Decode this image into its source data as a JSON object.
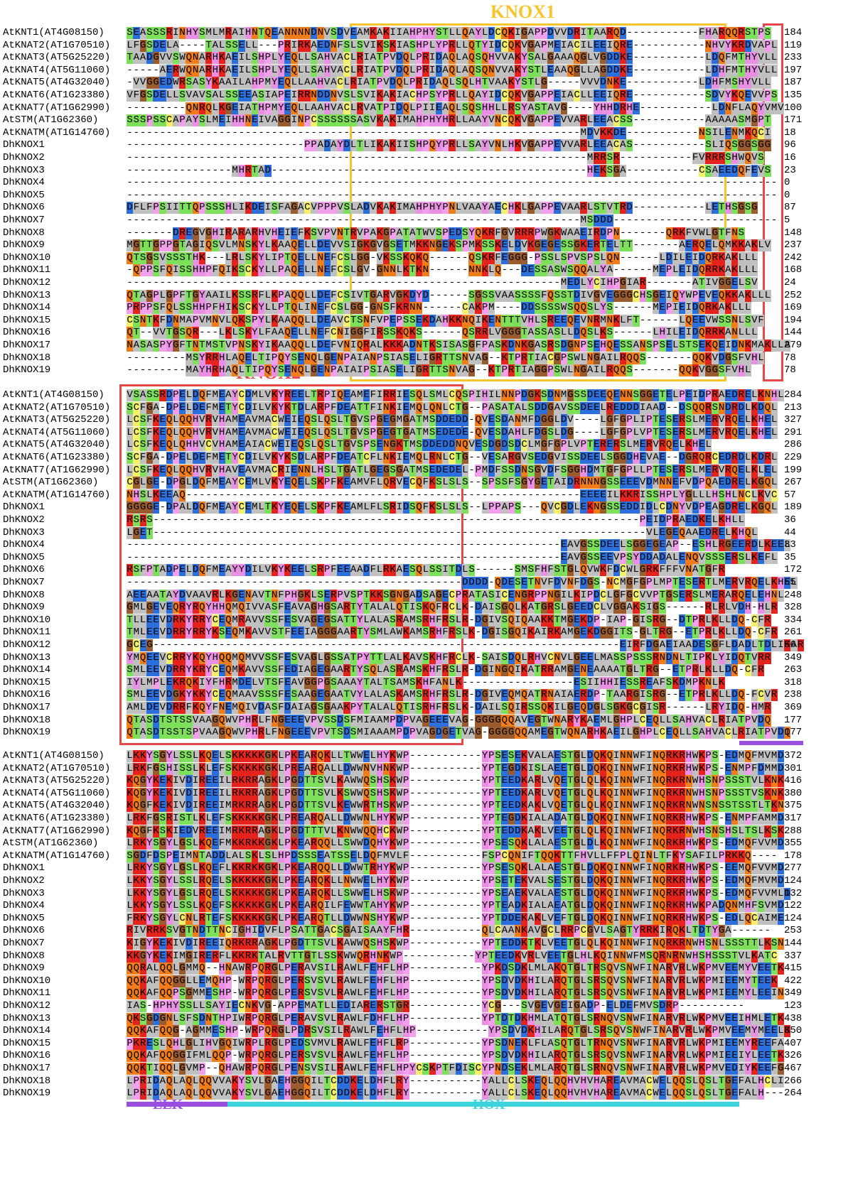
{
  "annotations": {
    "knox1": "KNOX1",
    "knox2": "KNOX2",
    "elk": "ELK",
    "hox": "HOX"
  },
  "blocks": [
    {
      "rows": [
        {
          "name": "AtKNT1(AT4G08150)",
          "sequence": "SEASSSRINHYSMLMRAIHNTQEANNNNDNVSDVEAMKAKIIAHPHYSTLLQAYLDCQKIGAPPDVVDRITAARQD-----------FHARQQRSTPS",
          "end": 184
        },
        {
          "name": "AtKNAT2(AT1G70510)",
          "sequence": "LFGSDELA----TALSSELL---PRIRKAEDNFSLSVIKSKIASHPLYPRLLQTYIDCQKVGAPMEIACILEEIQRE-----------NHVYKRDVAPL",
          "end": 119
        },
        {
          "name": "AtKNAT3(AT5G25220)",
          "sequence": "TAADGVVSWQNARHKAEILSHPLYEQLLSAHVACLRIATPVDQLPRIDAQLAQSQHVVAKYSALGAAAQGLVGDDKE-----------LDQFMTHYVLL",
          "end": 233
        },
        {
          "name": "AtKNAT4(AT5G11060)",
          "sequence": "-----AERWQNARHKAEILSHPLYEQLLSAHVACLRIATPVDQLPRIDAQLAQSQNVVAKYSTLEAAQGLLAGDDKE-----------LDHFMTHYVLL",
          "end": 197
        },
        {
          "name": "AtKNAT5(AT4G32040)",
          "sequence": "-VVGGEDWRSASYKAAILAHPMYEQLLAAHVACLRIATPVDQLPRIDAQLSQLHTVAAKYSTLG-----VVVDNKE-----------LDHFMSHYVLL",
          "end": 187
        },
        {
          "name": "AtKNAT6(AT1G23380)",
          "sequence": "VFGSDELLSVAVSALSSEEASIAPEIRRNDDNVSLSVIKAKIACHPSYPRLLQAYIDCQKVGAPPEIACLLEEIQRE-----------SDVYKQEVVPS",
          "end": 135
        },
        {
          "name": "AtKNAT7(AT1G62990)",
          "sequence": "---------QNRQLKGEIATHPMYEQLLAAHVACLRVATPIDQLPIIEAQLSQSHHLLRSYASTAVG----YHHDRHE-----------LDNFLAQYVMV",
          "end": 100
        },
        {
          "name": "AtSTM(AT1G62360)",
          "sequence": "SSSPSSCAPAYSLMEIHHNEIVAGGINPCSSSSSSASVKAKIMAHPHYHRLLAAYVNCQKVGAPPEVVARLEEACSS-----------AAAAASMGPT",
          "end": 171
        },
        {
          "name": "AtKNATM(AT1G14760)",
          "sequence": "---------------------------------------------------------------------MDVKKDE-----------NSILENMKQCI",
          "end": 18
        },
        {
          "name": "DhKNOX1",
          "sequence": "---------------------------PPADAYDLTLIKAKIISHPQYPRLLSAYVNLHKVGAPPEVVARLEEACAS-----------SLIQSGGSGG",
          "end": 96
        },
        {
          "name": "DhKNOX2",
          "sequence": "----------------------------------------------------------------------MRRSR-----------FVRRRSHWQVS",
          "end": 16
        },
        {
          "name": "DhKNOX3",
          "sequence": "----------------MHRTAD------------------------------------------------HEKSGA-----------CSAEEDQFEVS",
          "end": 23
        },
        {
          "name": "DhKNOX4",
          "sequence": "---------------------------------------------------------------------------------------------------",
          "end": 0
        },
        {
          "name": "DhKNOX5",
          "sequence": "---------------------------------------------------------------------------------------------------",
          "end": 0
        },
        {
          "name": "DhKNOX6",
          "sequence": "DFLFPSIITTQPSSSHLIKDEISFAGACVPPPVSLADVKAKIMAHPHYPNLVAAYAECHKLGAPPEVAARLSTVTRD-----------LETHSGSG",
          "end": 87
        },
        {
          "name": "DhKNOX7",
          "sequence": "---------------------------------------------------------------------MSDDD-------------------------",
          "end": 5
        },
        {
          "name": "DhKNOX8",
          "sequence": "-------DREGVGHIRARARHVHEIEFKSVPVNTRVPAKGPATATWVSPEDSYQKRFGVRRRPWGKWAAEIRDPN-------QRKFVWLGTFNS",
          "end": 148
        },
        {
          "name": "DhKNOX9",
          "sequence": "MGTTGPPGTAGIQSVLMNSKYLKAAQELLDEVVSIGKGVGSETMKKNGEKSPMKSSKELDVKGEGESSGKERTELTT-------AERQELQMKKAKLV",
          "end": 237
        },
        {
          "name": "DhKNOX10",
          "sequence": "QTSGSVSSSTHK---LRLSKYLIPTQELLNEFCSLGG-VKSSKQKQ------QSKRFEGGG-PSSLSPVSPSLQN------LDILEIDQRKAKLLL",
          "end": 242
        },
        {
          "name": "DhKNOX11",
          "sequence": "-QPPSFQISSHHPFQIKSCKYLLPAQELLNEFCSLGV-GNNLKTKN------NNKLQ---DESSASWSQQALYA------MEPLEIDQRRKAKLLL",
          "end": 168
        },
        {
          "name": "DhKNOX12",
          "sequence": "------------------------------------------------------------------MEDLYCIHPGIAR-------ATIVGGELSV",
          "end": 24
        },
        {
          "name": "DhKNOX13",
          "sequence": "QTAGPLGPFTGYAAILKSSRFLKPAQQLLDEFCSIVTGARVGKDYD------SGSSVAASSSSFQSSTDIVGVEGGGCHSGEIQYWPEVEQKKAKLLL",
          "end": 252
        },
        {
          "name": "DhKNOX14",
          "sequence": "PRPPSFQLSSHHPFHIKSCKYLLPTQLINEFCSLGG-GNSFKRNN------CAKPM----DDSSSSWSQQSLYS------MEPIEIDQRKAKLLL",
          "end": 169
        },
        {
          "name": "DhKNOX15",
          "sequence": "CSNTKFDNMAPVMNVLQKSPYLKAAQQLLDEAVCTSNFVPEPSSEKDAHKKNQIKENTTTVHLSREEQEVNRMNKLFT------LQEEVWSSNLSVF",
          "end": 194
        },
        {
          "name": "DhKNOX16",
          "sequence": "QT--VVTGSQR---LKLSKYLFAAQELLNEFCNIGGFIRSSKQKS------QSRRLVGGGTASSASLLDQSLKS------LHILEIDQRRKANLLL",
          "end": 144
        },
        {
          "name": "DhKNOX17",
          "sequence": "NASASPYGFTNTMSTVPNSKYIKAAQQLLDEFVNIQRALKKKADNTKSISASGFPASKDNKGASRSDGNPSEHQESSANSPSELSTSEKQEIDNKMAKLLA",
          "end": 279
        },
        {
          "name": "DhKNOX18",
          "sequence": "---------MSYRRHLAQELTIPQYSENQLGENPAIANPSIASELIGRTTSNVAG--KTPRTIACGPSWLNGAILRQQS-------QQKVDGSFVHL",
          "end": 78
        },
        {
          "name": "DhKNOX19",
          "sequence": "---------MAYHRHAQLTIPQYSENQLGENPAIAIPSIASELIGRTTSNVAG--KTPRTIAGGPSWLNGAILRQQS-------QQKVGGSFVHL",
          "end": 78
        }
      ]
    },
    {
      "rows": [
        {
          "name": "AtKNT1(AT4G08150)",
          "sequence": "VSASSRDPELDQFMEAYCDMLVKYREELTRPIQEAMEFIRRIESQLSMLCQSPIHILNNPDGKSDNMGSSDEEQENNSGGETELPEIDPRAEDRELKNHL",
          "end": 284
        },
        {
          "name": "AtKNAT2(AT1G70510)",
          "sequence": "SCFGA-DPELDEFMETYCDILVKYKTDLARPFDEATTFINKIEMQLQNLCTG--PASATALSDDGAVSSDEELREDDDIAAD--DSQQRSNDRDLKDQL",
          "end": 213
        },
        {
          "name": "AtKNAT3(AT5G25220)",
          "sequence": "LCSFKEQLQQHVRVHAMEAVMACWEIEQSLQSLTGVSPGEGMGATMSDDEDD-QVESDANMFDGGLDV----LGFGPLIPTESERSLMERVRQELKHEL",
          "end": 327
        },
        {
          "name": "AtKNAT4(AT5G11060)",
          "sequence": "LCSFKEQLQQHVRVHAMEAVMACWEIEQSLQSLTGVSPGEGTGATMSEDEDE-QVESDAHLFDGSLDG----LGFGPLVPTESERSLMERVRQELKHEL",
          "end": 291
        },
        {
          "name": "AtKNAT5(AT4G32040)",
          "sequence": "LCSFKEQLQHHVCVHAMEAIACWEIEQSLQSLTGVSPSENGKTMSDDEDDNQVESDGDSDCLMGFGPLVPTERERSLMERVRQELKHEL",
          "end": 286
        },
        {
          "name": "AtKNAT6(AT1G23380)",
          "sequence": "SCFGA-DPELDEFMETYCDILVKYKSDLARPFDEATCFLNKIEMQLRNLCTG--VESARGVSEDGVISSDEELSGGDHEVAE--DGRQRCEDRDLKDRL",
          "end": 229
        },
        {
          "name": "AtKNAT7(AT1G62990)",
          "sequence": "LCSFKEQLQQHVRVHAVEAVMACRIENNLHSLTGATLGEGSGATMSEDEDEL-PMDFSSDNSGVDFSGGHDMTGFGPLLPTESERSLMERVRQELKLEL",
          "end": 199
        },
        {
          "name": "AtSTM(AT1G62360)",
          "sequence": "CGLGE-DPGLDQFMEAYCEMLVKYEQELSKPFKEAMVFLQRVECQFKSLSLS--SPSSFSGYGETAIDRNNNGSSEEEVDMNNEFVDPQAEDRELKGQL",
          "end": 267
        },
        {
          "name": "AtKNATM(AT1G14760)",
          "sequence": "NHSLKEEAQ------------------------------------------------------------EEEEILKKRISSHPLYGLLLHSHLNCLKVC",
          "end": 57
        },
        {
          "name": "DhKNOX1",
          "sequence": "GGGGE-DPALDQFMEAYCEMLTKYEQELSKPFKEAMLFLSRIDSQFKSLSLS--LPPAPS---QVCGDLEKNGSSEDDIDLCDNYVDPEAGDRELKGQL",
          "end": 189
        },
        {
          "name": "DhKNOX2",
          "sequence": "RSRS--------------------------------------------------------------------------PEIDPRAEDKELKHLL",
          "end": 36
        },
        {
          "name": "DhKNOX3",
          "sequence": "LGET---------------------------------------------------------------------------VLEGEQAAEDRELKHQL",
          "end": 44
        },
        {
          "name": "DhKNOX4",
          "sequence": "------------------------------------------------------------------EAVGSSDEELSGGEGEAP--ESHLRGEERDLKEEL",
          "end": 33
        },
        {
          "name": "DhKNOX5",
          "sequence": "------------------------------------------------------------------EAVGSSEEVPSYDDADALENQVSSSERSLKEFL",
          "end": 35
        },
        {
          "name": "DhKNOX6",
          "sequence": "RSFPTADPELDQFMEAYYDILVKYKEELSRPFEEAADFLRKAESQLSSITDLS------SMSFHFSTGLQVWKFDCWLGRKFFFVNATGFR",
          "end": 172
        },
        {
          "name": "DhKNOX7",
          "sequence": "---------------------------------------------------DDDD-QDESETNVFDVNFDGS-NCMGFGPLMPTESERTLMERVRQELKHEL",
          "end": 55
        },
        {
          "name": "DhKNOX8",
          "sequence": "AEEAATAYDVAAVRLKGENAVTNFPHGKLSERPVSPTKKSGNGADSAGECPRATASICENGRPPNGILKIPDCLGFGCVVPTGSERSLMERARQELEHNL",
          "end": 248
        },
        {
          "name": "DhKNOX9",
          "sequence": "GMLGEVEQRYRQYHHQMQIVVASFEAVAGHGSARTYTALALQTISKQFRCLK-DAISGQLKATGRSLGEEDCLVGGAKSIGS------RLRLVDH-HLR",
          "end": 328
        },
        {
          "name": "DhKNOX10",
          "sequence": "TLLEEVDRKYRRYCEQMRAVVSSFESVAGEGSATTYLALASRAMSRHFRSLR-DGIVSQIQAAKKTMGEKDP-IAP-GISRG--DTPRLKLLDQ-CFR",
          "end": 334
        },
        {
          "name": "DhKNOX11",
          "sequence": "TMLEEVDRRYRRYKSEQMKAVVSTFEEIAGGGAARTYSMLAWKAMSRHFRSLK-DGISGQIKAIRKAMGEKDGGITS-GLTRG--ETPRLKLLDQ-CFR",
          "end": 261
        },
        {
          "name": "DhKNOX12",
          "sequence": "GCEG-----------------------------------------------------------------------EIRFDGAEIAADESGFLDADLTDLIKAR",
          "end": 56
        },
        {
          "name": "DhKNOX13",
          "sequence": "YMQEEVCRRYKQYHQQMQMVVSSFESVAGLGSSATPYTTLALKAVSKHFRCLK-SAISDQLRHVCNVLGEELMASSPSSSRNDNLTIPKLYIDQTVRR",
          "end": 349
        },
        {
          "name": "DhKNOX14",
          "sequence": "SMLEEVDRRYKRYCEQMKAVVSSFEDIAGEGAARTYSQLASRAMSKHFRSLR-DGINGQIKATRRAMGENEAAAATGLTRG--ETPRLKLLDQ-CFR",
          "end": 263
        },
        {
          "name": "DhKNOX15",
          "sequence": "IYLMPLEKRQKIYFHRMDELVTSFEAVGGPGSAAAYTALTSAMSKHFANLK-----------------ESIIHHIESSREAFSKDMPKNLK",
          "end": 318
        },
        {
          "name": "DhKNOX16",
          "sequence": "SMLEEVDGKYKKYCEQMAAVSSSFESAAGEGAATVYLALASKAMSRHFRSLR-DGIVEQMQATRNAIAERDP-TAARGISRG--ETPRLKLLDQ-FCVR",
          "end": 238
        },
        {
          "name": "DhKNOX17",
          "sequence": "AMLDEVDRRFKQYFNEMQIVDASFDAIAGSGAAKPYTALALQTISRHFRSLK-DAILSQIRSSQKILGEQDGLSGKGCGISR------LRYIDQ-HMR",
          "end": 369
        },
        {
          "name": "DhKNOX18",
          "sequence": "QTASDTSTSSVAAGQWVPHRLFNGEEEVPVSSDSFMIAAMPDPVAGEEEVAG-GGGGQQAVEGTWNARYKAEMLGHPLCEQLLSAHVACLRIATPVDQ",
          "end": 177
        },
        {
          "name": "DhKNOX19",
          "sequence": "QTASDTSSTSPVAAGQWVPHRLFNGEEEVPVTSDSMIAAAMPDPVAGDGETVAG-GGGGQQAMEGTWQNARHKAEILGHPLCEQLLSAHVACLRIATPVDQ",
          "end": 177
        }
      ]
    },
    {
      "rows": [
        {
          "name": "AtKNT1(AT4G08150)",
          "sequence": "LKKYSGYLSSLKQELSKKKKKGKLPKEARQKLLTWWELHYKWP-----------YPSESEKVALAESTGLDQKQINNWFINQRKRHWKPS-EDMQFMVMD",
          "end": 372
        },
        {
          "name": "AtKNAT2(AT1G70510)",
          "sequence": "LRKFGSHISSLKLEFSKKKKKGKLPREARQALLDWWNVHNKWP-----------YPTEGDKISLAEETGLDQKQINNWFINQRKRHWKPS-ENMPFDMMD",
          "end": 301
        },
        {
          "name": "AtKNAT3(AT5G25220)",
          "sequence": "KQGYKEKIVDIREEILRKRRAGKLPGDTTSVLKAWWQSHSKWP-----------YPTEEDKARLVQETGLQLKQINNWFINQRKRNWHSNPSSSTVLKNK",
          "end": 416
        },
        {
          "name": "AtKNAT4(AT5G11060)",
          "sequence": "KQGYKEKIVDIREEILRKRRAGKLPGDTTSVLKSWWQSHSKWP-----------YPTEEDKARLVQETGLQLKQINNWFINQRKRNWHSNPSSSTVSKNK",
          "end": 380
        },
        {
          "name": "AtKNAT5(AT4G32040)",
          "sequence": "KQGFKEKIVDIREEIMRKRRAGKLPGDTTSVLKEWWRTHSKWP-----------YPTEEDKAKLVQETGLQLKQINNWFINQRKRNWNSNSSTSSTLTKN",
          "end": 375
        },
        {
          "name": "AtKNAT6(AT1G23380)",
          "sequence": "LRKFGSRISTLKLEFSKKKKKGKLPREARQALLDWWNLHYKWP-----------YPTEGDKIALADATGLDQKQINNWFINQRKRHWKPS-ENMPFAMMD",
          "end": 317
        },
        {
          "name": "AtKNAT7(AT1G62990)",
          "sequence": "KQGFKSKIEDVREEIMRKRRAGKLPGDTTTVLKNWWQQHCKWP-----------YPTEDDKAKLVEETGLQLKQINNWFINQRKRNWHSNSHSLTSLKSK",
          "end": 288
        },
        {
          "name": "AtSTM(AT1G62360)",
          "sequence": "LRKYSGYLGSLKQEFMKKRKKGKLPKEARQQLLSWWDQHYKWP-----------YPSESQKLALAESTGLDLKQINNWFINQRKRHWKPS-EDMQFVVMD",
          "end": 355
        },
        {
          "name": "AtKNATM(AT1G14760)",
          "sequence": "SGDFDSPEIMNTADDLALSKLSLHPDSSSEATSSELDQFMVLF-----------FSPCQNIFTQQKTTFHVLLFFPLQINLTFKYSAFILPRKKQ----",
          "end": 178
        },
        {
          "name": "DhKNOX1",
          "sequence": "LRKYSGYLGSLKQEFLKKRKKGKLPKEARQQLLDWWTRHYKWP-----------YPSESQKLALAESTGLDQKQINNWFINQRKRHWKPS-EEMQFVVMD",
          "end": 277
        },
        {
          "name": "DhKNOX2",
          "sequence": "LKKYSGYLSSLRQELSKKKKKGKLPKEARQKLLNWWELHYKWP-----------YPSETEKVALSESTGLDQKQINNWFINQRKRHWKPS-EDMQFMVMD",
          "end": 124
        },
        {
          "name": "DhKNOX3",
          "sequence": "LKKYSGYLGSLRQELSKKKKKGKLPKEARQKLLSWWELHSKWP-----------YPSEAEKVALAESTGLDQKQINNWFINQRKRHWKPS-EDMQFVVMLD",
          "end": 132
        },
        {
          "name": "DhKNOX4",
          "sequence": "LKKYSGYLSSLKQEFSKKKKKGKLPKEARQILFEWWTAHYKWP-----------YPTEADKIALAEATGLDQKQINNWFINQRKRHWKPADQNMHFSVMD",
          "end": 122
        },
        {
          "name": "DhKNOX5",
          "sequence": "FRKYSGYLCNLRTEFSKKKKKGKLPKEARQTLLDWWNSHYKWP-----------YPTDDEKAKLVEFTGLDQKQINNWFINQRKRHWKPS-EDLQCAIME",
          "end": 124
        },
        {
          "name": "DhKNOX6",
          "sequence": "RIVRRKSVGTNDTTNCIGHIDVFLPSATTGACSGAISAAYFHR-----------QLCAANKAVGCLRRPCGVLSAGTYRRKIRQKLTDTYGA------",
          "end": 253
        },
        {
          "name": "DhKNOX7",
          "sequence": "KIGYKEKIVDIREEIQRKRRAGKLPGDTTSVLKAWWQSHSKWP-----------YPTEDDKTKLVEETGLQLKQINNWFINQRKRNWHSNLSSSTTLKSN",
          "end": 144
        },
        {
          "name": "DhKNOX8",
          "sequence": "KKGYKEKIMGIRERFLKKRKTALRVTTGTLSSKWWQRHNKWP-----------YPTEEDKVRLVEETGLHLKQINNWFMSQRNRNWHSHSSSTVLKATC",
          "end": 337
        },
        {
          "name": "DhKNOX9",
          "sequence": "QQRALQQLGMMQ--HNAWRPQRGLPERAVSILRAWLFEHFLHP-----------YPKDSDKLMLAKQTGLTRSQVSNWFINARVRLWKPMVEEMYVEETK",
          "end": 415
        },
        {
          "name": "DhKNOX10",
          "sequence": "QQKAFQQGGLLEMQHP-WRPQRGLPERSVSVLRAWLFEHFLHP-----------YPSDVDKHILARQTGLSRSQVSNWFINARVRLWKPMIEEMYTEEK",
          "end": 422
        },
        {
          "name": "DhKNOX11",
          "sequence": "QQKAFQQPSGMMESHP-WRPQRGLPERSVSVLRAWLFEHFLHP-----------YPSDVDKHILARQTGLSRSQVSNWFINARVRLWKPMIEEMYLEEIN",
          "end": 349
        },
        {
          "name": "DhKNOX12",
          "sequence": "IAS-HPHYSSLLSAYIECNKVG-APPEMATLLEDIARERSTGR-----------YCG---SVGEVGEIGADP-ELDEFMVSDRP----------",
          "end": 123
        },
        {
          "name": "DhKNOX13",
          "sequence": "QKSGDGNLSFSDNTHPIWRPQRGLPERAVSVLRAWLFDHFLHP-----------YPTDTDKHMLATQTGLSRNQVSNWFINARVRLWKPMVEEIHMLETK",
          "end": 438
        },
        {
          "name": "DhKNOX14",
          "sequence": "QQKAFQQG-AGMMESHP-WRPQRGLPDRSVSILRAWLFEHFLHP-----------YPSDVDKHILARQTGLSRSQVSNWFINARVRLWKPMVEEMYMEELK",
          "end": 350
        },
        {
          "name": "DhKNOX15",
          "sequence": "PKRESLQHLGLIHVGQIWRPLRGLPEDSVMVLRAWLFEHFLRP-----------YPSDNEKLFLASQTGLTRNQVSNWFINARVRLWKPMIEEMYREEFA",
          "end": 407
        },
        {
          "name": "DhKNOX16",
          "sequence": "QQKAFQQGGIFMLQQP-WRPQRGLPERSVSVLRAWLFEHFLHP-----------YPSDVDKHILARQTGLSRSQVSNWFINARVRLWKPMIEEIYLEETK",
          "end": 326
        },
        {
          "name": "DhKNOX17",
          "sequence": "QQKTIQQLGVMP--QHAWRPQRGLPENSVSILRAWLFEHFLHPYCSKPTFDISCYPNDSEKLMLARQTGLSRNQVSNWFINARVRLWKPMVEDIYKEEFG",
          "end": 467
        },
        {
          "name": "DhKNOX18",
          "sequence": "LPRIDAQLAQLQQVVAKYSVLGAEHGGQILTCDDKELDHFLRY-----------YALLCLSKEQLQQHVHVHAREAVMACWELQQSLQSLTGEFALHCLI",
          "end": 266
        },
        {
          "name": "DhKNOX19",
          "sequence": "LPRIDAQLAQLQQVVAKYSVLGAEHGGQILTCDDKELDHFLRY-----------YALLCLSKEQLQQHVHVHAREAVMACWELQQSLQSLTGEFALH---",
          "end": 264
        }
      ]
    }
  ]
}
